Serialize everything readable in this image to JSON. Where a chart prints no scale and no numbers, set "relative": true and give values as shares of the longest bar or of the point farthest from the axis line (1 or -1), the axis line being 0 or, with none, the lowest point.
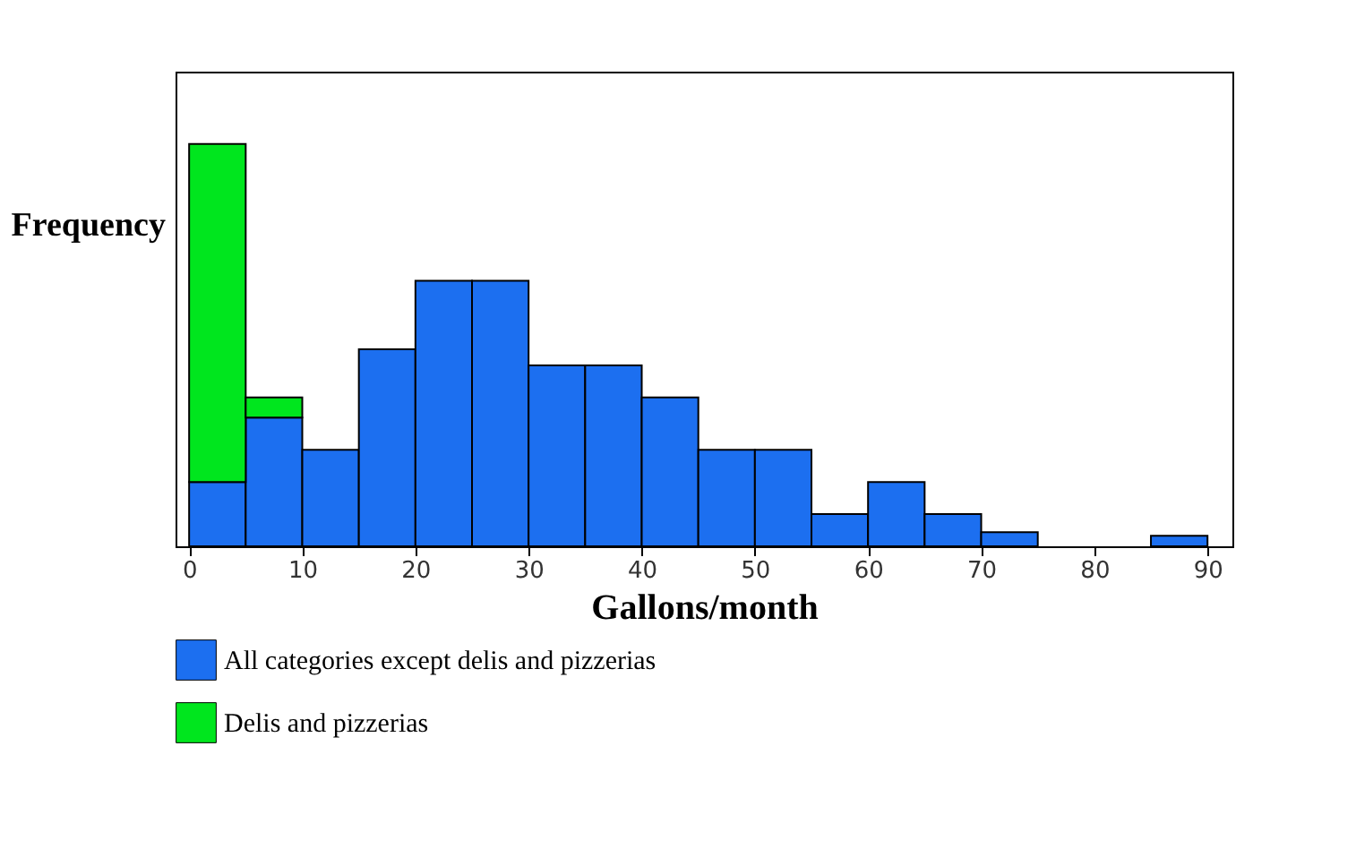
{
  "chart_data": {
    "type": "bar",
    "xlabel": "Gallons/month",
    "ylabel": "Frequency",
    "relative": true,
    "stacked": true,
    "x": [
      2.5,
      7.5,
      12.5,
      17.5,
      22.5,
      27.5,
      32.5,
      37.5,
      42.5,
      47.5,
      52.5,
      57.5,
      62.5,
      67.5,
      72.5,
      77.5,
      82.5,
      87.5
    ],
    "series": [
      {
        "name": "All categories except delis and pizzerias",
        "color": "#1c6ff0",
        "values": [
          0.16,
          0.32,
          0.24,
          0.49,
          0.66,
          0.66,
          0.45,
          0.45,
          0.37,
          0.24,
          0.24,
          0.08,
          0.16,
          0.08,
          0.035,
          0,
          0,
          0.026
        ]
      },
      {
        "name": "Delis and pizzerias",
        "color": "#00e61e",
        "values": [
          0.84,
          0.05,
          0,
          0,
          0,
          0,
          0,
          0,
          0,
          0,
          0,
          0,
          0,
          0,
          0,
          0,
          0,
          0
        ]
      }
    ],
    "xlim": [
      -1.2,
      92.2
    ],
    "xticks": [
      0,
      10,
      20,
      30,
      40,
      50,
      60,
      70,
      80,
      90
    ],
    "grid": false,
    "legend": "bottom"
  }
}
